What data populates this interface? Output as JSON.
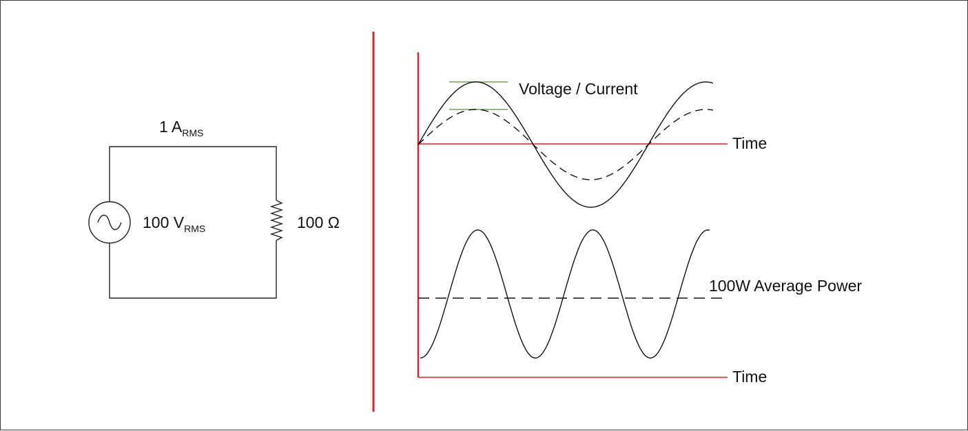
{
  "circuit": {
    "current_value": "1 A",
    "current_subscript": "RMS",
    "voltage_value": "100 V",
    "voltage_subscript": "RMS",
    "resistance": "100 Ω",
    "source_icon": "ac-source-icon",
    "resistor_icon": "resistor-icon"
  },
  "waveforms": {
    "voltage_current_label": "Voltage / Current",
    "top_time_label": "Time",
    "average_power_label": "100W Average Power",
    "bottom_time_label": "Time"
  },
  "colors": {
    "divider": "#e0202a",
    "axis": "#e0202a",
    "peak_marker": "#6aa84f",
    "wire": "#222222",
    "waveform": "#111111"
  }
}
